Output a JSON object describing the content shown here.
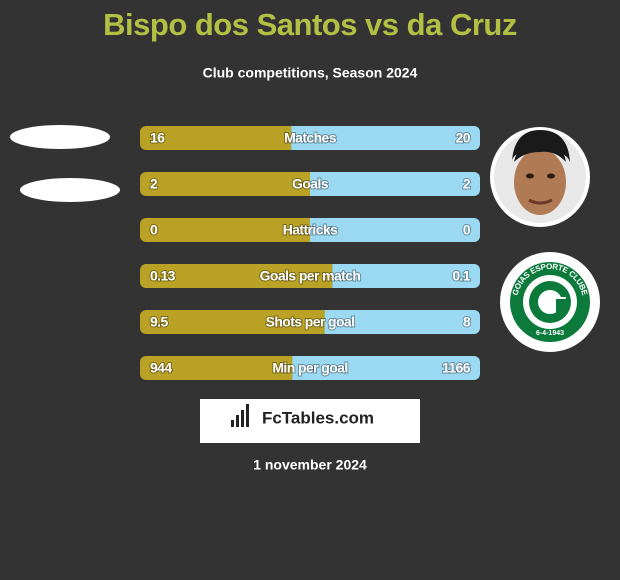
{
  "title": "Bispo dos Santos vs da Cruz",
  "subtitle": "Club competitions, Season 2024",
  "rows": [
    {
      "label": "Matches",
      "left": 16,
      "right": 20
    },
    {
      "label": "Goals",
      "left": 2,
      "right": 2
    },
    {
      "label": "Hattricks",
      "left": 0,
      "right": 0
    },
    {
      "label": "Goals per match",
      "left": 0.13,
      "right": 0.1
    },
    {
      "label": "Shots per goal",
      "left": 9.5,
      "right": 8
    },
    {
      "label": "Min per goal",
      "left": 944,
      "right": 1166
    }
  ],
  "club_badge": {
    "name": "GOIAS ESPORTE CLUBE",
    "founded": "6-4-1943"
  },
  "brand": "FcTables.com",
  "date": "1 november 2024"
}
